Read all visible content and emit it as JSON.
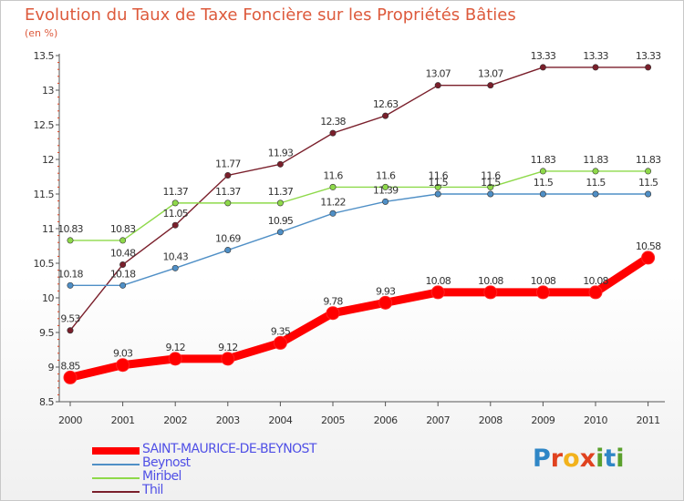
{
  "title": "Evolution du Taux de Taxe Foncière sur les Propriétés Bâties",
  "subtitle": "(en %)",
  "logo": {
    "letters": [
      {
        "ch": "P",
        "color": "#2f86c6"
      },
      {
        "ch": "r",
        "color": "#e0421f"
      },
      {
        "ch": "o",
        "color": "#f2b21c"
      },
      {
        "ch": "x",
        "color": "#e0421f"
      },
      {
        "ch": "i",
        "color": "#5aa02c"
      },
      {
        "ch": "t",
        "color": "#2f86c6"
      },
      {
        "ch": "i",
        "color": "#5aa02c"
      }
    ]
  },
  "chart_data": {
    "type": "line",
    "title": "Evolution du Taux de Taxe Foncière sur les Propriétés Bâties",
    "ylabel": "(en %)",
    "xlabel": "",
    "categories": [
      "2000",
      "2001",
      "2002",
      "2003",
      "2004",
      "2005",
      "2006",
      "2007",
      "2008",
      "2009",
      "2010",
      "2011"
    ],
    "ylim": [
      8.5,
      13.5
    ],
    "yticks": [
      "8.5",
      "9",
      "9.5",
      "10",
      "10.5",
      "11",
      "11.5",
      "12",
      "12.5",
      "13",
      "13.5"
    ],
    "grid": false,
    "legend_position": "bottom-left",
    "series": [
      {
        "name": "SAINT-MAURICE-DE-BEYNOST",
        "color": "#ff0000",
        "values": [
          8.85,
          9.03,
          9.12,
          9.12,
          9.35,
          9.78,
          9.93,
          10.08,
          10.08,
          10.08,
          10.08,
          10.58
        ],
        "labels": [
          "8.85",
          "9.03",
          "9.12",
          "9.12",
          "9.35",
          "9.78",
          "9.93",
          "10.08",
          "10.08",
          "10.08",
          "10.08",
          "10.58"
        ]
      },
      {
        "name": "Beynost",
        "color": "#4f8fc6",
        "values": [
          10.18,
          10.18,
          10.43,
          10.69,
          10.95,
          11.22,
          11.39,
          11.5,
          11.5,
          11.5,
          11.5,
          11.5
        ],
        "labels": [
          "10.18",
          "10.18",
          "10.43",
          "10.69",
          "10.95",
          "11.22",
          "11.39",
          "11.5",
          "11.5",
          "11.5",
          "11.5",
          "11.5"
        ]
      },
      {
        "name": "Miribel",
        "color": "#8ed94a",
        "values": [
          10.83,
          10.83,
          11.37,
          11.37,
          11.37,
          11.6,
          11.6,
          11.6,
          11.6,
          11.83,
          11.83,
          11.83
        ],
        "labels": [
          "10.83",
          "10.83",
          "11.37",
          "11.37",
          "11.37",
          "11.6",
          "11.6",
          "11.6",
          "11.6",
          "11.83",
          "11.83",
          "11.83"
        ]
      },
      {
        "name": "Thil",
        "color": "#7a1f2b",
        "values": [
          9.53,
          10.48,
          11.05,
          11.77,
          11.93,
          12.38,
          12.63,
          13.07,
          13.07,
          13.33,
          13.33,
          13.33
        ],
        "labels": [
          "9.53",
          "10.48",
          "11.05",
          "11.77",
          "11.93",
          "12.38",
          "12.63",
          "13.07",
          "13.07",
          "13.33",
          "13.33",
          "13.33"
        ]
      }
    ]
  }
}
